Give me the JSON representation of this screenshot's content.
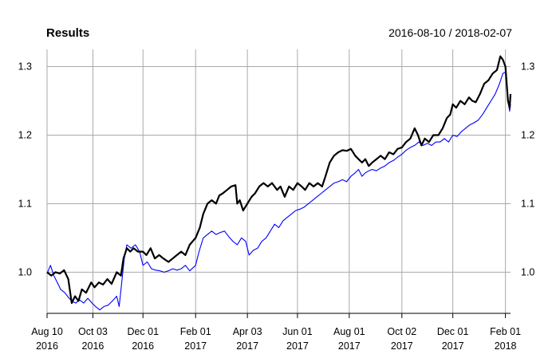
{
  "chart_data": {
    "type": "line",
    "title": "Results",
    "date_range": "2016-08-10 / 2018-02-07",
    "xlabel": "",
    "ylabel": "",
    "ylim": [
      0.94,
      1.325
    ],
    "xlim": [
      "2016-08-10",
      "2018-02-07"
    ],
    "grid": true,
    "y_ticks": [
      1.0,
      1.1,
      1.2,
      1.3
    ],
    "y_tick_labels": [
      "1.0",
      "1.1",
      "1.2",
      "1.3"
    ],
    "x_ticks": [
      {
        "date": "2016-08-10",
        "line1": "Aug 10",
        "line2": "2016"
      },
      {
        "date": "2016-10-03",
        "line1": "Oct 03",
        "line2": "2016"
      },
      {
        "date": "2016-12-01",
        "line1": "Dec 01",
        "line2": "2016"
      },
      {
        "date": "2017-02-01",
        "line1": "Feb 01",
        "line2": "2017"
      },
      {
        "date": "2017-04-03",
        "line1": "Apr 03",
        "line2": "2017"
      },
      {
        "date": "2017-06-01",
        "line1": "Jun 01",
        "line2": "2017"
      },
      {
        "date": "2017-08-01",
        "line1": "Aug 01",
        "line2": "2017"
      },
      {
        "date": "2017-10-02",
        "line1": "Oct 02",
        "line2": "2017"
      },
      {
        "date": "2017-12-01",
        "line1": "Dec 01",
        "line2": "2017"
      },
      {
        "date": "2018-02-01",
        "line1": "Feb 01",
        "line2": "2018"
      }
    ],
    "series": [
      {
        "color": "#000000",
        "values": [
          [
            "2016-08-10",
            1.0
          ],
          [
            "2016-08-15",
            0.995
          ],
          [
            "2016-08-20",
            1.0
          ],
          [
            "2016-08-25",
            0.998
          ],
          [
            "2016-08-30",
            1.003
          ],
          [
            "2016-09-04",
            0.99
          ],
          [
            "2016-09-08",
            0.955
          ],
          [
            "2016-09-12",
            0.965
          ],
          [
            "2016-09-16",
            0.958
          ],
          [
            "2016-09-20",
            0.975
          ],
          [
            "2016-09-25",
            0.97
          ],
          [
            "2016-10-01",
            0.985
          ],
          [
            "2016-10-05",
            0.978
          ],
          [
            "2016-10-10",
            0.985
          ],
          [
            "2016-10-15",
            0.982
          ],
          [
            "2016-10-20",
            0.99
          ],
          [
            "2016-10-25",
            0.983
          ],
          [
            "2016-10-31",
            1.0
          ],
          [
            "2016-11-05",
            0.995
          ],
          [
            "2016-11-08",
            1.02
          ],
          [
            "2016-11-12",
            1.035
          ],
          [
            "2016-11-16",
            1.03
          ],
          [
            "2016-11-20",
            1.035
          ],
          [
            "2016-11-25",
            1.03
          ],
          [
            "2016-12-01",
            1.03
          ],
          [
            "2016-12-05",
            1.025
          ],
          [
            "2016-12-10",
            1.035
          ],
          [
            "2016-12-15",
            1.02
          ],
          [
            "2016-12-20",
            1.025
          ],
          [
            "2016-12-25",
            1.02
          ],
          [
            "2016-12-31",
            1.015
          ],
          [
            "2017-01-05",
            1.02
          ],
          [
            "2017-01-10",
            1.025
          ],
          [
            "2017-01-15",
            1.03
          ],
          [
            "2017-01-20",
            1.025
          ],
          [
            "2017-01-25",
            1.04
          ],
          [
            "2017-02-01",
            1.05
          ],
          [
            "2017-02-06",
            1.065
          ],
          [
            "2017-02-10",
            1.085
          ],
          [
            "2017-02-15",
            1.1
          ],
          [
            "2017-02-20",
            1.105
          ],
          [
            "2017-02-25",
            1.1
          ],
          [
            "2017-03-01",
            1.112
          ],
          [
            "2017-03-05",
            1.115
          ],
          [
            "2017-03-10",
            1.12
          ],
          [
            "2017-03-15",
            1.125
          ],
          [
            "2017-03-20",
            1.127
          ],
          [
            "2017-03-22",
            1.1
          ],
          [
            "2017-03-25",
            1.105
          ],
          [
            "2017-03-29",
            1.09
          ],
          [
            "2017-04-03",
            1.1
          ],
          [
            "2017-04-08",
            1.11
          ],
          [
            "2017-04-12",
            1.115
          ],
          [
            "2017-04-17",
            1.125
          ],
          [
            "2017-04-22",
            1.13
          ],
          [
            "2017-04-27",
            1.125
          ],
          [
            "2017-05-02",
            1.13
          ],
          [
            "2017-05-08",
            1.12
          ],
          [
            "2017-05-12",
            1.125
          ],
          [
            "2017-05-17",
            1.11
          ],
          [
            "2017-05-22",
            1.125
          ],
          [
            "2017-05-27",
            1.12
          ],
          [
            "2017-06-01",
            1.13
          ],
          [
            "2017-06-06",
            1.125
          ],
          [
            "2017-06-10",
            1.12
          ],
          [
            "2017-06-15",
            1.13
          ],
          [
            "2017-06-20",
            1.125
          ],
          [
            "2017-06-25",
            1.13
          ],
          [
            "2017-06-30",
            1.125
          ],
          [
            "2017-07-04",
            1.14
          ],
          [
            "2017-07-09",
            1.16
          ],
          [
            "2017-07-14",
            1.17
          ],
          [
            "2017-07-19",
            1.175
          ],
          [
            "2017-07-24",
            1.178
          ],
          [
            "2017-07-29",
            1.177
          ],
          [
            "2017-08-03",
            1.18
          ],
          [
            "2017-08-08",
            1.17
          ],
          [
            "2017-08-12",
            1.165
          ],
          [
            "2017-08-16",
            1.16
          ],
          [
            "2017-08-20",
            1.165
          ],
          [
            "2017-08-24",
            1.155
          ],
          [
            "2017-08-28",
            1.16
          ],
          [
            "2017-09-02",
            1.165
          ],
          [
            "2017-09-07",
            1.17
          ],
          [
            "2017-09-12",
            1.165
          ],
          [
            "2017-09-17",
            1.175
          ],
          [
            "2017-09-22",
            1.172
          ],
          [
            "2017-09-27",
            1.18
          ],
          [
            "2017-10-02",
            1.182
          ],
          [
            "2017-10-07",
            1.19
          ],
          [
            "2017-10-12",
            1.195
          ],
          [
            "2017-10-17",
            1.21
          ],
          [
            "2017-10-21",
            1.2
          ],
          [
            "2017-10-25",
            1.185
          ],
          [
            "2017-10-29",
            1.195
          ],
          [
            "2017-11-03",
            1.19
          ],
          [
            "2017-11-08",
            1.2
          ],
          [
            "2017-11-14",
            1.2
          ],
          [
            "2017-11-19",
            1.21
          ],
          [
            "2017-11-24",
            1.225
          ],
          [
            "2017-11-28",
            1.23
          ],
          [
            "2017-12-01",
            1.245
          ],
          [
            "2017-12-05",
            1.24
          ],
          [
            "2017-12-10",
            1.25
          ],
          [
            "2017-12-15",
            1.245
          ],
          [
            "2017-12-20",
            1.255
          ],
          [
            "2017-12-24",
            1.25
          ],
          [
            "2017-12-28",
            1.248
          ],
          [
            "2018-01-02",
            1.26
          ],
          [
            "2018-01-07",
            1.275
          ],
          [
            "2018-01-12",
            1.28
          ],
          [
            "2018-01-17",
            1.29
          ],
          [
            "2018-01-22",
            1.295
          ],
          [
            "2018-01-26",
            1.315
          ],
          [
            "2018-01-29",
            1.31
          ],
          [
            "2018-02-01",
            1.3
          ],
          [
            "2018-02-04",
            1.25
          ],
          [
            "2018-02-06",
            1.24
          ],
          [
            "2018-02-07",
            1.26
          ]
        ]
      },
      {
        "color": "#0000ff",
        "values": [
          [
            "2016-08-10",
            0.998
          ],
          [
            "2016-08-14",
            1.01
          ],
          [
            "2016-08-18",
            0.995
          ],
          [
            "2016-08-22",
            0.985
          ],
          [
            "2016-08-26",
            0.975
          ],
          [
            "2016-08-31",
            0.97
          ],
          [
            "2016-09-05",
            0.962
          ],
          [
            "2016-09-09",
            0.957
          ],
          [
            "2016-09-13",
            0.955
          ],
          [
            "2016-09-17",
            0.96
          ],
          [
            "2016-09-22",
            0.955
          ],
          [
            "2016-09-27",
            0.962
          ],
          [
            "2016-10-02",
            0.955
          ],
          [
            "2016-10-06",
            0.95
          ],
          [
            "2016-10-11",
            0.945
          ],
          [
            "2016-10-16",
            0.95
          ],
          [
            "2016-10-21",
            0.952
          ],
          [
            "2016-10-26",
            0.958
          ],
          [
            "2016-10-31",
            0.965
          ],
          [
            "2016-11-03",
            0.95
          ],
          [
            "2016-11-06",
            0.985
          ],
          [
            "2016-11-09",
            1.02
          ],
          [
            "2016-11-12",
            1.04
          ],
          [
            "2016-11-17",
            1.035
          ],
          [
            "2016-11-22",
            1.04
          ],
          [
            "2016-11-27",
            1.03
          ],
          [
            "2016-12-01",
            1.01
          ],
          [
            "2016-12-06",
            1.015
          ],
          [
            "2016-12-11",
            1.005
          ],
          [
            "2016-12-16",
            1.003
          ],
          [
            "2016-12-21",
            1.002
          ],
          [
            "2016-12-26",
            1.0
          ],
          [
            "2016-12-31",
            1.002
          ],
          [
            "2017-01-05",
            1.005
          ],
          [
            "2017-01-10",
            1.003
          ],
          [
            "2017-01-15",
            1.005
          ],
          [
            "2017-01-20",
            1.01
          ],
          [
            "2017-01-25",
            1.002
          ],
          [
            "2017-02-01",
            1.01
          ],
          [
            "2017-02-05",
            1.03
          ],
          [
            "2017-02-10",
            1.05
          ],
          [
            "2017-02-15",
            1.055
          ],
          [
            "2017-02-20",
            1.06
          ],
          [
            "2017-02-25",
            1.055
          ],
          [
            "2017-03-02",
            1.058
          ],
          [
            "2017-03-07",
            1.06
          ],
          [
            "2017-03-12",
            1.052
          ],
          [
            "2017-03-17",
            1.045
          ],
          [
            "2017-03-22",
            1.04
          ],
          [
            "2017-03-27",
            1.05
          ],
          [
            "2017-04-01",
            1.045
          ],
          [
            "2017-04-05",
            1.025
          ],
          [
            "2017-04-10",
            1.032
          ],
          [
            "2017-04-15",
            1.035
          ],
          [
            "2017-04-20",
            1.045
          ],
          [
            "2017-04-25",
            1.05
          ],
          [
            "2017-04-30",
            1.06
          ],
          [
            "2017-05-05",
            1.07
          ],
          [
            "2017-05-10",
            1.065
          ],
          [
            "2017-05-15",
            1.075
          ],
          [
            "2017-05-20",
            1.08
          ],
          [
            "2017-05-25",
            1.085
          ],
          [
            "2017-05-30",
            1.09
          ],
          [
            "2017-06-04",
            1.092
          ],
          [
            "2017-06-09",
            1.095
          ],
          [
            "2017-06-14",
            1.1
          ],
          [
            "2017-06-19",
            1.105
          ],
          [
            "2017-06-24",
            1.11
          ],
          [
            "2017-06-29",
            1.115
          ],
          [
            "2017-07-04",
            1.12
          ],
          [
            "2017-07-09",
            1.125
          ],
          [
            "2017-07-14",
            1.13
          ],
          [
            "2017-07-19",
            1.132
          ],
          [
            "2017-07-24",
            1.135
          ],
          [
            "2017-07-29",
            1.132
          ],
          [
            "2017-08-03",
            1.14
          ],
          [
            "2017-08-08",
            1.145
          ],
          [
            "2017-08-12",
            1.15
          ],
          [
            "2017-08-16",
            1.14
          ],
          [
            "2017-08-20",
            1.145
          ],
          [
            "2017-08-24",
            1.148
          ],
          [
            "2017-08-28",
            1.15
          ],
          [
            "2017-09-02",
            1.148
          ],
          [
            "2017-09-07",
            1.152
          ],
          [
            "2017-09-12",
            1.155
          ],
          [
            "2017-09-17",
            1.16
          ],
          [
            "2017-09-22",
            1.163
          ],
          [
            "2017-09-27",
            1.168
          ],
          [
            "2017-10-02",
            1.172
          ],
          [
            "2017-10-07",
            1.178
          ],
          [
            "2017-10-12",
            1.182
          ],
          [
            "2017-10-17",
            1.185
          ],
          [
            "2017-10-22",
            1.19
          ],
          [
            "2017-10-27",
            1.185
          ],
          [
            "2017-11-01",
            1.188
          ],
          [
            "2017-11-06",
            1.185
          ],
          [
            "2017-11-11",
            1.19
          ],
          [
            "2017-11-16",
            1.19
          ],
          [
            "2017-11-21",
            1.195
          ],
          [
            "2017-11-26",
            1.19
          ],
          [
            "2017-12-01",
            1.2
          ],
          [
            "2017-12-06",
            1.198
          ],
          [
            "2017-12-11",
            1.205
          ],
          [
            "2017-12-16",
            1.21
          ],
          [
            "2017-12-21",
            1.215
          ],
          [
            "2017-12-26",
            1.218
          ],
          [
            "2017-12-31",
            1.222
          ],
          [
            "2018-01-05",
            1.23
          ],
          [
            "2018-01-10",
            1.24
          ],
          [
            "2018-01-15",
            1.25
          ],
          [
            "2018-01-20",
            1.26
          ],
          [
            "2018-01-25",
            1.275
          ],
          [
            "2018-01-29",
            1.29
          ],
          [
            "2018-02-01",
            1.292
          ],
          [
            "2018-02-04",
            1.25
          ],
          [
            "2018-02-06",
            1.235
          ],
          [
            "2018-02-07",
            1.245
          ]
        ]
      }
    ]
  }
}
